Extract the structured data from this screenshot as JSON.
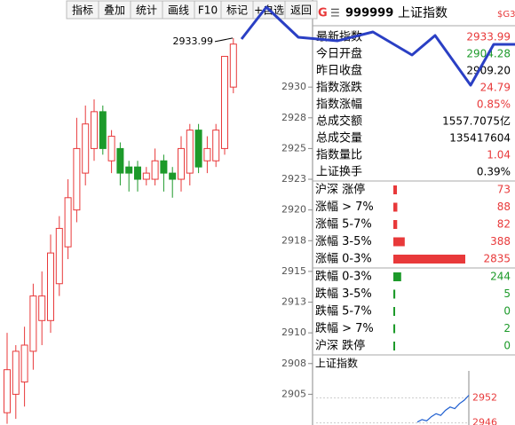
{
  "toolbar": [
    "指标",
    "叠加",
    "统计",
    "画线",
    "F10",
    "标记",
    "+自选",
    "返回"
  ],
  "chart_data": {
    "type": "candlestick",
    "ylim": [
      2902.5,
      2935.5
    ],
    "yticks": [
      2905,
      {
        "value": 2907.5,
        "label": "2908"
      },
      2910,
      {
        "value": 2912.5,
        "label": "2913"
      },
      2915,
      {
        "value": 2917.5,
        "label": "2918"
      },
      2920,
      {
        "value": 2922.5,
        "label": "2923"
      },
      2925,
      {
        "value": 2927.5,
        "label": "2928"
      },
      2930
    ],
    "open": [
      2903.5,
      2905,
      2906,
      2908.5,
      2911,
      2911,
      2914,
      2917,
      2920,
      2923,
      2925,
      2928,
      2924,
      2925,
      2923.5,
      2923.5,
      2922.5,
      2922.5,
      2924,
      2923,
      2922.5,
      2923,
      2926.5,
      2924,
      2924,
      2925,
      2930
    ],
    "close": [
      2907,
      2908.5,
      2909,
      2913,
      2913,
      2916.5,
      2918.5,
      2921,
      2925,
      2927,
      2928,
      2925,
      2926,
      2923,
      2923,
      2922.5,
      2923,
      2924,
      2923,
      2922.5,
      2925,
      2926.5,
      2923.5,
      2925,
      2926.5,
      2932.5,
      2933.5
    ],
    "high": [
      2910,
      2909,
      2910.5,
      2914,
      2915,
      2918,
      2919.5,
      2922.5,
      2927.5,
      2928.5,
      2929,
      2928.5,
      2926.5,
      2925.5,
      2924,
      2924,
      2923.5,
      2925,
      2924.5,
      2923.5,
      2926,
      2927,
      2927,
      2926,
      2927,
      2932.5,
      2933.99
    ],
    "low": [
      2902.6,
      2903,
      2904,
      2907,
      2909,
      2910,
      2913,
      2916,
      2919,
      2922,
      2924,
      2924.5,
      2923,
      2922,
      2921.5,
      2921.5,
      2922,
      2922,
      2921.5,
      2921,
      2921.5,
      2922,
      2923,
      2923,
      2923.5,
      2924.5,
      2929.5
    ],
    "annotation": {
      "value": 2933.99,
      "label": "2933.99"
    }
  },
  "quote": {
    "market": "G",
    "code": "999999",
    "name": "上证指数",
    "tag": "$G3",
    "rows": [
      {
        "label": "最新指数",
        "value": "2933.99"
      },
      {
        "label": "今日开盘",
        "value": "2904.28"
      },
      {
        "label": "昨日收盘",
        "value": "2909.20"
      },
      {
        "label": "指数涨跌",
        "value": "24.79"
      },
      {
        "label": "指数涨幅",
        "value": "0.85%"
      },
      {
        "label": "总成交额",
        "value": "1557.7075亿"
      },
      {
        "label": "总成交量",
        "value": "135417604"
      },
      {
        "label": "指数量比",
        "value": "1.04"
      },
      {
        "label": "上证换手",
        "value": "0.39%"
      }
    ]
  },
  "breadth": {
    "up": [
      {
        "label": "沪深 涨停",
        "value": 73
      },
      {
        "label": "涨幅 > 7%",
        "value": 88
      },
      {
        "label": "涨幅 5-7%",
        "value": 82
      },
      {
        "label": "涨幅 3-5%",
        "value": 388
      },
      {
        "label": "涨幅 0-3%",
        "value": 2835
      }
    ],
    "down": [
      {
        "label": "跌幅 0-3%",
        "value": 244
      },
      {
        "label": "跌幅 3-5%",
        "value": 5
      },
      {
        "label": "跌幅 5-7%",
        "value": 0
      },
      {
        "label": "跌幅 > 7%",
        "value": 2
      },
      {
        "label": "沪深 跌停",
        "value": 0
      }
    ]
  },
  "mini_chart": {
    "title": "上证指数",
    "ylim": [
      2945.5,
      2958
    ],
    "yticks": [
      2946,
      2952
    ],
    "values": [
      2946.2,
      2946.8,
      2946.5,
      2947.5,
      2948.2,
      2947.8,
      2949,
      2949.8,
      2949.4,
      2950.6,
      2951.4,
      2952.6
    ]
  }
}
